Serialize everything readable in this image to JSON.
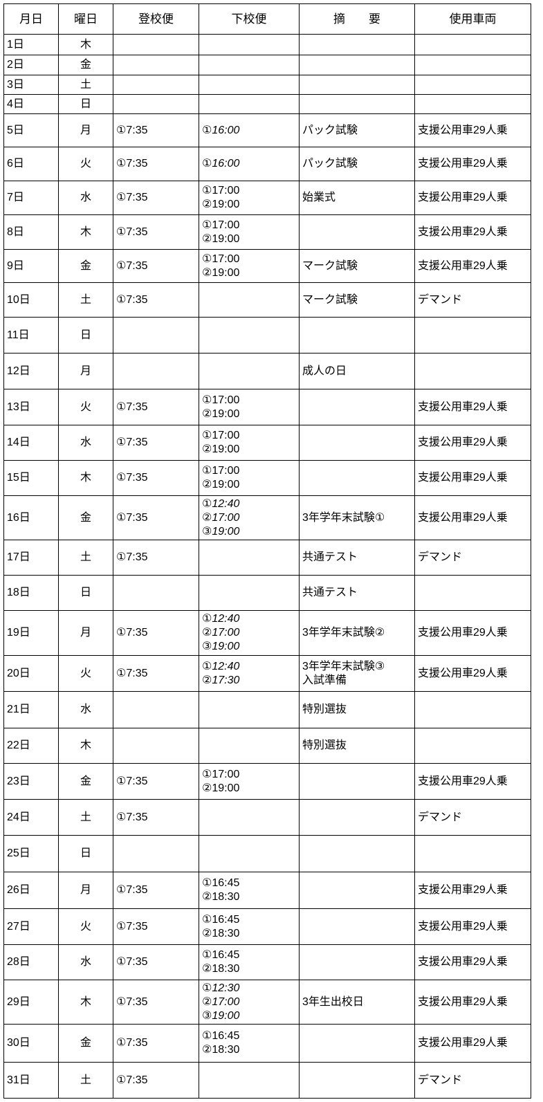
{
  "headers": [
    "月日",
    "曜日",
    "登校便",
    "下校便",
    "摘　　要",
    "使用車両"
  ],
  "rows": [
    {
      "date": "1日",
      "dow": "木",
      "up": "",
      "down": [],
      "note": [],
      "vehicle": ""
    },
    {
      "date": "2日",
      "dow": "金",
      "up": "",
      "down": [],
      "note": [],
      "vehicle": ""
    },
    {
      "date": "3日",
      "dow": "土",
      "up": "",
      "down": [],
      "note": [],
      "vehicle": ""
    },
    {
      "date": "4日",
      "dow": "日",
      "up": "",
      "down": [],
      "note": [],
      "vehicle": ""
    },
    {
      "date": "5日",
      "dow": "月",
      "up": "①7:35",
      "down": [
        "①16:00"
      ],
      "down_italic": true,
      "note": [
        "パック試験"
      ],
      "vehicle": "支援公用車29人乗"
    },
    {
      "date": "6日",
      "dow": "火",
      "up": "①7:35",
      "down": [
        "①16:00"
      ],
      "down_italic": true,
      "note": [
        "パック試験"
      ],
      "vehicle": "支援公用車29人乗"
    },
    {
      "date": "7日",
      "dow": "水",
      "up": "①7:35",
      "down": [
        "①17:00",
        "②19:00"
      ],
      "note": [
        "始業式"
      ],
      "vehicle": "支援公用車29人乗"
    },
    {
      "date": "8日",
      "dow": "木",
      "up": "①7:35",
      "down": [
        "①17:00",
        "②19:00"
      ],
      "note": [],
      "vehicle": "支援公用車29人乗"
    },
    {
      "date": "9日",
      "dow": "金",
      "up": "①7:35",
      "down": [
        "①17:00",
        "②19:00"
      ],
      "note": [
        "マーク試験"
      ],
      "vehicle": "支援公用車29人乗"
    },
    {
      "date": "10日",
      "dow": "土",
      "up": "①7:35",
      "down": [],
      "note": [
        "マーク試験"
      ],
      "vehicle": "デマンド"
    },
    {
      "date": "11日",
      "dow": "日",
      "up": "",
      "down": [],
      "note": [],
      "vehicle": ""
    },
    {
      "date": "12日",
      "dow": "月",
      "up": "",
      "down": [],
      "note": [
        "成人の日"
      ],
      "vehicle": ""
    },
    {
      "date": "13日",
      "dow": "火",
      "up": "①7:35",
      "down": [
        "①17:00",
        "②19:00"
      ],
      "note": [],
      "vehicle": "支援公用車29人乗"
    },
    {
      "date": "14日",
      "dow": "水",
      "up": "①7:35",
      "down": [
        "①17:00",
        "②19:00"
      ],
      "note": [],
      "vehicle": "支援公用車29人乗"
    },
    {
      "date": "15日",
      "dow": "木",
      "up": "①7:35",
      "down": [
        "①17:00",
        "②19:00"
      ],
      "note": [],
      "vehicle": "支援公用車29人乗"
    },
    {
      "date": "16日",
      "dow": "金",
      "up": "①7:35",
      "down": [
        "①12:40",
        "②17:00",
        "③19:00"
      ],
      "down_italic": true,
      "note": [
        "3年学年末試験①"
      ],
      "vehicle": "支援公用車29人乗"
    },
    {
      "date": "17日",
      "dow": "土",
      "up": "①7:35",
      "down": [],
      "note": [
        "共通テスト"
      ],
      "vehicle": "デマンド"
    },
    {
      "date": "18日",
      "dow": "日",
      "up": "",
      "down": [],
      "note": [
        "共通テスト"
      ],
      "vehicle": ""
    },
    {
      "date": "19日",
      "dow": "月",
      "up": "①7:35",
      "down": [
        "①12:40",
        "②17:00",
        "③19:00"
      ],
      "down_italic": true,
      "note": [
        "3年学年末試験②"
      ],
      "vehicle": "支援公用車29人乗"
    },
    {
      "date": "20日",
      "dow": "火",
      "up": "①7:35",
      "down": [
        "①12:40",
        "②17:30"
      ],
      "down_italic": true,
      "note": [
        "3年学年末試験③",
        "入試準備"
      ],
      "vehicle": "支援公用車29人乗"
    },
    {
      "date": "21日",
      "dow": "水",
      "up": "",
      "down": [],
      "note": [
        "特別選抜"
      ],
      "vehicle": ""
    },
    {
      "date": "22日",
      "dow": "木",
      "up": "",
      "down": [],
      "note": [
        "特別選抜"
      ],
      "vehicle": ""
    },
    {
      "date": "23日",
      "dow": "金",
      "up": "①7:35",
      "down": [
        "①17:00",
        "②19:00"
      ],
      "note": [],
      "vehicle": "支援公用車29人乗"
    },
    {
      "date": "24日",
      "dow": "土",
      "up": "①7:35",
      "down": [],
      "note": [],
      "vehicle": "デマンド"
    },
    {
      "date": "25日",
      "dow": "日",
      "up": "",
      "down": [],
      "note": [],
      "vehicle": ""
    },
    {
      "date": "26日",
      "dow": "月",
      "up": "①7:35",
      "down": [
        "①16:45",
        "②18:30"
      ],
      "note": [],
      "vehicle": "支援公用車29人乗"
    },
    {
      "date": "27日",
      "dow": "火",
      "up": "①7:35",
      "down": [
        "①16:45",
        "②18:30"
      ],
      "note": [],
      "vehicle": "支援公用車29人乗"
    },
    {
      "date": "28日",
      "dow": "水",
      "up": "①7:35",
      "down": [
        "①16:45",
        "②18:30"
      ],
      "note": [],
      "vehicle": "支援公用車29人乗"
    },
    {
      "date": "29日",
      "dow": "木",
      "up": "①7:35",
      "down": [
        "①12:30",
        "②17:00",
        "③19:00"
      ],
      "down_italic": true,
      "note": [
        "3年生出校日"
      ],
      "vehicle": "支援公用車29人乗"
    },
    {
      "date": "30日",
      "dow": "金",
      "up": "①7:35",
      "down": [
        "①16:45",
        "②18:30"
      ],
      "note": [],
      "vehicle": "支援公用車29人乗"
    },
    {
      "date": "31日",
      "dow": "土",
      "up": "①7:35",
      "down": [],
      "note": [],
      "vehicle": "デマンド"
    }
  ]
}
